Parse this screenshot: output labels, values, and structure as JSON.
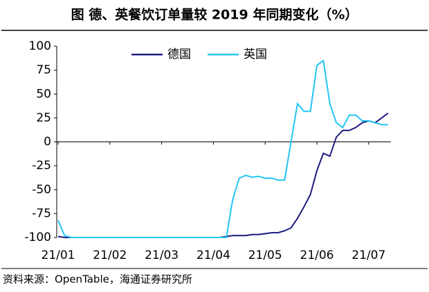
{
  "chart_data": {
    "type": "line",
    "title": "图  德、英餐饮订单量较 2019 年同期变化（%）",
    "source": "资料来源：OpenTable，海通证券研究所",
    "categories": [
      "21/01",
      null,
      null,
      null,
      null,
      null,
      null,
      null,
      "21/02",
      null,
      null,
      null,
      null,
      null,
      null,
      null,
      "21/03",
      null,
      null,
      null,
      null,
      null,
      null,
      null,
      "21/04",
      null,
      null,
      null,
      null,
      null,
      null,
      null,
      "21/05",
      null,
      null,
      null,
      null,
      null,
      null,
      null,
      "21/06",
      null,
      null,
      null,
      null,
      null,
      null,
      null,
      "21/07",
      null,
      null,
      null
    ],
    "series": [
      {
        "name": "德国",
        "color": "#1c1a7e",
        "values": [
          -99,
          -100,
          -100,
          -100,
          -100,
          -100,
          -100,
          -100,
          -100,
          -100,
          -100,
          -100,
          -100,
          -100,
          -100,
          -100,
          -100,
          -100,
          -100,
          -100,
          -100,
          -100,
          -100,
          -100,
          -100,
          -100,
          -99,
          -98,
          -98,
          -98,
          -97,
          -97,
          -96,
          -95,
          -95,
          -93,
          -90,
          -80,
          -68,
          -55,
          -30,
          -12,
          -15,
          5,
          12,
          12,
          15,
          20,
          22,
          20,
          25,
          30
        ]
      },
      {
        "name": "英国",
        "color": "#22c5f2",
        "values": [
          -82,
          -98,
          -100,
          -100,
          -100,
          -100,
          -100,
          -100,
          -100,
          -100,
          -100,
          -100,
          -100,
          -100,
          -100,
          -100,
          -100,
          -100,
          -100,
          -100,
          -100,
          -100,
          -100,
          -100,
          -100,
          -100,
          -100,
          -60,
          -38,
          -35,
          -37,
          -36,
          -38,
          -38,
          -40,
          -40,
          0,
          40,
          32,
          32,
          80,
          85,
          40,
          20,
          15,
          28,
          28,
          22,
          22,
          20,
          18,
          18
        ]
      }
    ],
    "ylim": [
      -100,
      100
    ],
    "yticks": [
      -100,
      -75,
      -50,
      -25,
      0,
      25,
      50,
      75,
      100
    ],
    "legend": "top"
  }
}
